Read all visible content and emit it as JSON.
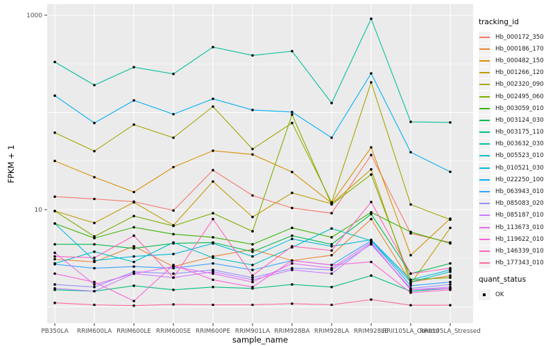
{
  "figure": {
    "xlabel": "sample_name",
    "ylabel": "FPKM + 1",
    "legend_title": "tracking_id",
    "legend2_title": "quant_status",
    "legend2_items": [
      {
        "label": "OK",
        "marker": "black-square-point"
      }
    ]
  },
  "chart_data": {
    "type": "line",
    "title": "",
    "xlabel": "sample_name",
    "ylabel": "FPKM + 1",
    "x_categories": [
      "PB350LA",
      "RRIM600LA",
      "RRIM600LE",
      "RRIM600SE",
      "RRIM600PE",
      "RRIM901LA",
      "RRIM928BA",
      "RRIM928LA",
      "RRIM928LE",
      "RRII105LA_Control",
      "RRII105LA_Stressed"
    ],
    "y_scale": "log10",
    "ylim": [
      1,
      1100
    ],
    "y_ticks": [
      1000,
      10
    ],
    "y_tick_labels": [
      "1000",
      "10"
    ],
    "grid": "on",
    "legend_position": "right",
    "legend_title": "tracking_id",
    "panel_bg": "#EBEBEB",
    "grid_color": "#FFFFFF",
    "point_color": "#000000",
    "series": [
      {
        "name": "Hb_000172_350",
        "color": "#F8766D",
        "values": [
          13.6,
          12.9,
          12.1,
          9.8,
          25.5,
          14,
          10.4,
          9.2,
          36.5,
          5.7,
          4.6
        ]
      },
      {
        "name": "Hb_000186_170",
        "color": "#EA8331",
        "values": [
          3.1,
          2.9,
          4.2,
          2.6,
          3.3,
          3.9,
          3.0,
          3.4,
          8.0,
          1.8,
          2.1
        ]
      },
      {
        "name": "Hb_000482_150",
        "color": "#D89000",
        "values": [
          31.7,
          21.6,
          15.2,
          27.4,
          40.4,
          37,
          24.4,
          11.7,
          43.7,
          3.4,
          8.1
        ]
      },
      {
        "name": "Hb_001266_120",
        "color": "#C09B00",
        "values": [
          9.7,
          7.3,
          11.9,
          6.9,
          19.5,
          8.4,
          14.9,
          11.5,
          26,
          1.73,
          6.5
        ]
      },
      {
        "name": "Hb_002320_090",
        "color": "#A3A500",
        "values": [
          62,
          40,
          75,
          55,
          115,
          42,
          78,
          11.9,
          204,
          11.3,
          7.9
        ]
      },
      {
        "name": "Hb_002495_060",
        "color": "#7CAE00",
        "values": [
          9.7,
          5.3,
          8.6,
          6.8,
          9.2,
          6.0,
          95,
          11.3,
          23,
          1.9,
          2.0
        ]
      },
      {
        "name": "Hb_003059_010",
        "color": "#39B600",
        "values": [
          7.2,
          5.1,
          6.6,
          5.6,
          5.2,
          4.4,
          6.5,
          5.2,
          9.4,
          5.9,
          4.5
        ]
      },
      {
        "name": "Hb_003124_030",
        "color": "#00BB4E",
        "values": [
          4.4,
          4.4,
          4.0,
          4.5,
          4.6,
          3.7,
          5.4,
          4.4,
          9.0,
          2.2,
          2.8
        ]
      },
      {
        "name": "Hb_003175_110",
        "color": "#00C079",
        "values": [
          1.5,
          1.45,
          1.65,
          1.5,
          1.6,
          1.55,
          1.7,
          1.6,
          2.1,
          1.45,
          1.55
        ]
      },
      {
        "name": "Hb_003632_030",
        "color": "#00C19C",
        "values": [
          330,
          191,
          292,
          249,
          470,
          386,
          427,
          125,
          920,
          80,
          79
        ]
      },
      {
        "name": "Hb_005523_010",
        "color": "#00BFC4",
        "values": [
          2.8,
          3.7,
          2.9,
          4.6,
          3.2,
          2.7,
          4.1,
          6.4,
          4.8,
          1.8,
          2.3
        ]
      },
      {
        "name": "Hb_010521_030",
        "color": "#00BAE0",
        "values": [
          7.2,
          3.0,
          3.3,
          3.5,
          4.5,
          3.3,
          5.0,
          4.2,
          4.9,
          1.9,
          2.4
        ]
      },
      {
        "name": "Hb_022250_100",
        "color": "#00B0F6",
        "values": [
          149,
          78,
          133,
          96,
          138,
          106,
          101,
          55,
          252,
          39,
          24.5
        ]
      },
      {
        "name": "Hb_063943_010",
        "color": "#35A2FF",
        "values": [
          2.75,
          2.5,
          2.6,
          2.5,
          2.8,
          2.4,
          3.0,
          2.7,
          4.8,
          1.65,
          1.8
        ]
      },
      {
        "name": "Hb_085083_020",
        "color": "#9590FF",
        "values": [
          1.7,
          1.6,
          2.3,
          2.2,
          2.4,
          2.0,
          2.5,
          2.4,
          4.4,
          1.55,
          1.7
        ]
      },
      {
        "name": "Hb_085187_010",
        "color": "#C77CFF",
        "values": [
          1.55,
          1.45,
          2.2,
          2.0,
          2.3,
          1.9,
          2.4,
          2.2,
          4.5,
          1.5,
          1.6
        ]
      },
      {
        "name": "Hb_113673_010",
        "color": "#E76BF3",
        "values": [
          3.6,
          1.7,
          2.2,
          2.6,
          2.2,
          1.8,
          2.8,
          2.5,
          4.6,
          1.5,
          1.55
        ]
      },
      {
        "name": "Hb_119622_010",
        "color": "#FA62DB",
        "values": [
          2.2,
          1.8,
          1.15,
          2.7,
          1.9,
          1.6,
          3.0,
          2.7,
          2.9,
          1.4,
          1.5
        ]
      },
      {
        "name": "Hb_146339_010",
        "color": "#FF62BC",
        "values": [
          3.3,
          3.2,
          5.4,
          2.0,
          8.0,
          2.1,
          4.2,
          3.8,
          12.0,
          2.2,
          2.5
        ]
      },
      {
        "name": "Hb_177343_010",
        "color": "#FF6A98",
        "values": [
          1.1,
          1.05,
          1.03,
          1.06,
          1.05,
          1.05,
          1.08,
          1.05,
          1.19,
          1.04,
          1.04
        ]
      }
    ],
    "quant_status": {
      "title": "quant_status",
      "items": [
        "OK"
      ]
    }
  }
}
